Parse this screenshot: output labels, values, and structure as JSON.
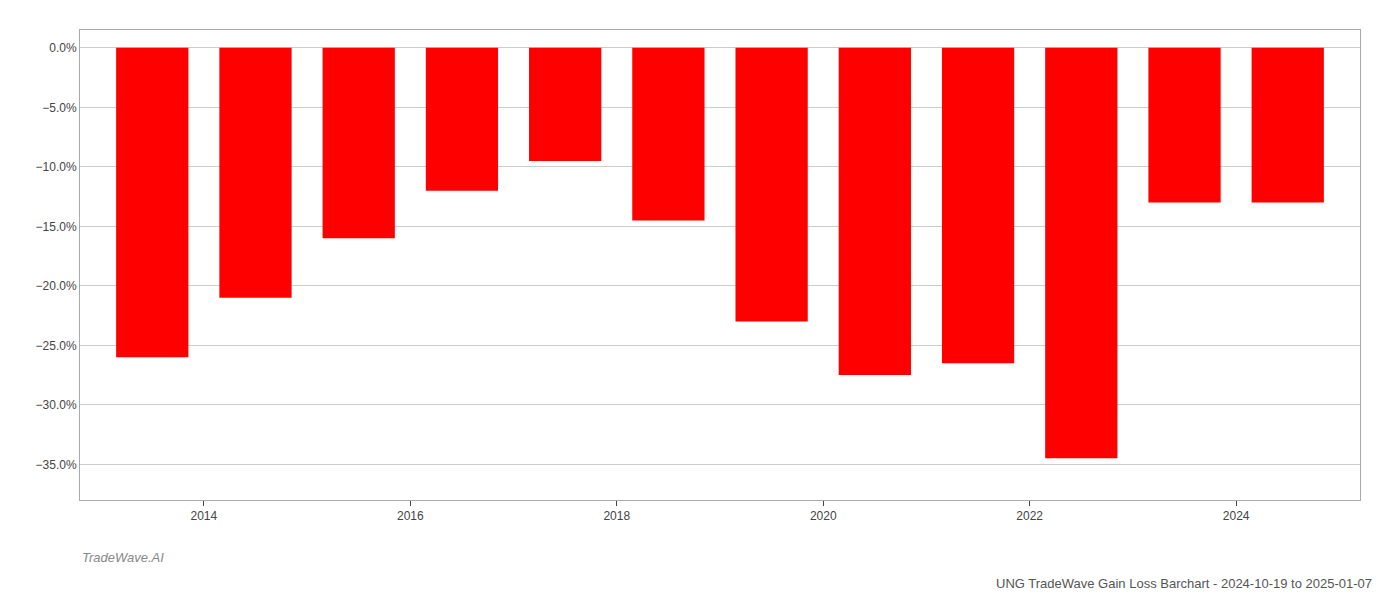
{
  "chart_data": {
    "type": "bar",
    "title": "UNG TradeWave Gain Loss Barchart - 2024-10-19 to 2025-01-07",
    "annotations": [
      "TradeWave.AI"
    ],
    "x": [
      2013.5,
      2014.5,
      2015.5,
      2016.5,
      2017.5,
      2018.5,
      2019.5,
      2020.5,
      2021.5,
      2022.5,
      2023.5,
      2024.5
    ],
    "values": [
      -0.26,
      -0.21,
      -0.16,
      -0.12,
      -0.095,
      -0.145,
      -0.23,
      -0.275,
      -0.265,
      -0.345,
      -0.13,
      -0.13
    ],
    "color": "#ff0000",
    "xlim": [
      2012.8,
      2025.2
    ],
    "xticks": [
      2014,
      2016,
      2018,
      2020,
      2022,
      2024
    ],
    "ylim": [
      -0.38,
      0.015
    ],
    "yticks": [
      {
        "value": 0.0,
        "label": "0.0%"
      },
      {
        "value": -0.05,
        "label": "−5.0%"
      },
      {
        "value": -0.1,
        "label": "−10.0%"
      },
      {
        "value": -0.15,
        "label": "−15.0%"
      },
      {
        "value": -0.2,
        "label": "−20.0%"
      },
      {
        "value": -0.25,
        "label": "−25.0%"
      },
      {
        "value": -0.3,
        "label": "−30.0%"
      },
      {
        "value": -0.35,
        "label": "−35.0%"
      }
    ],
    "grid": true
  }
}
